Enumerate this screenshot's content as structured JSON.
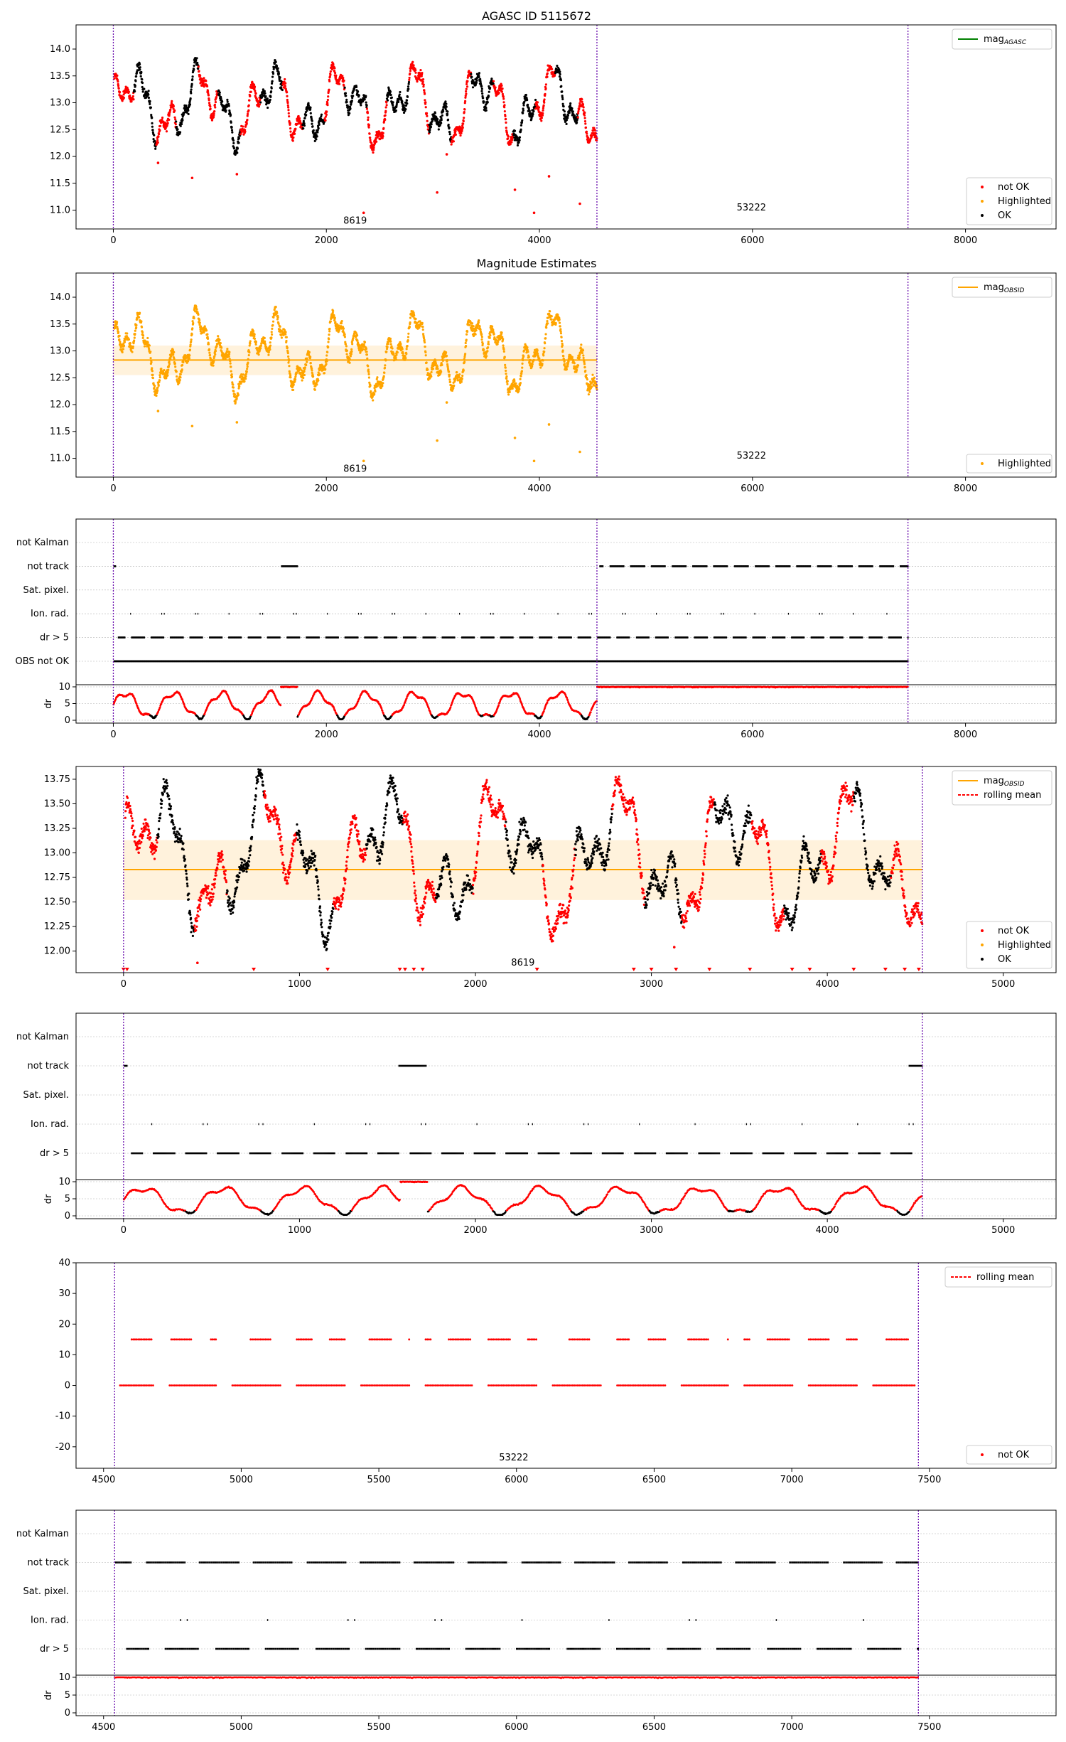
{
  "figure": {
    "title": "AGASC ID 5115672",
    "subtitle": "Magnitude Estimates"
  },
  "colors": {
    "ok": "#000000",
    "not_ok": "#ff0000",
    "highlighted": "#ffa500",
    "mag_agasc": "#008000",
    "mag_obsid": "#ffa500",
    "band": "#fff2dc",
    "obs_line": "#6a0dad",
    "grid": "#b0b0b0"
  },
  "flag_labels_obs": [
    "not Kalman",
    "not track",
    "Sat. pixel.",
    "Ion. rad.",
    "dr > 5",
    "OBS not OK"
  ],
  "flag_labels": [
    "not Kalman",
    "not track",
    "Sat. pixel.",
    "Ion. rad.",
    "dr > 5"
  ],
  "chart_data": [
    {
      "id": "p1",
      "type": "scatter",
      "title": "AGASC ID 5115672",
      "xlim": [
        -350,
        8850
      ],
      "ylim": [
        10.65,
        14.45
      ],
      "xticks": [
        0,
        2000,
        4000,
        6000,
        8000
      ],
      "yticks": [
        11.0,
        11.5,
        12.0,
        12.5,
        13.0,
        13.5,
        14.0
      ],
      "obs_lines": [
        0,
        4540,
        7460
      ],
      "obs_labels": [
        {
          "text": "8619",
          "x": 2270,
          "y": 10.8
        },
        {
          "text": "53222",
          "x": 5990,
          "y": 11.05
        }
      ],
      "legend_top": {
        "label": "mag",
        "sub": "AGASC"
      },
      "legend_bottom": [
        "not OK",
        "Highlighted",
        "OK"
      ]
    },
    {
      "id": "p2",
      "type": "scatter",
      "title": "Magnitude Estimates",
      "xlim": [
        -350,
        8850
      ],
      "ylim": [
        10.65,
        14.45
      ],
      "xticks": [
        0,
        2000,
        4000,
        6000,
        8000
      ],
      "yticks": [
        11.0,
        11.5,
        12.0,
        12.5,
        13.0,
        13.5,
        14.0
      ],
      "obs_lines": [
        0,
        4540,
        7460
      ],
      "obs_labels": [
        {
          "text": "8619",
          "x": 2270,
          "y": 10.8
        },
        {
          "text": "53222",
          "x": 5990,
          "y": 11.05
        }
      ],
      "mag_obsid": 12.83,
      "mag_band": [
        12.55,
        13.1
      ],
      "mag_range": [
        0,
        4540
      ],
      "legend_top": {
        "label": "mag",
        "sub": "OBSID"
      },
      "legend_bottom": [
        "Highlighted"
      ]
    },
    {
      "id": "p3",
      "type": "flags",
      "xlim": [
        -350,
        8850
      ],
      "xticks": [
        0,
        2000,
        4000,
        6000,
        8000
      ],
      "obs_lines": [
        0,
        4540,
        7460
      ],
      "dr_yticks": [
        0,
        5,
        10
      ],
      "dr_ylabel": "dr"
    },
    {
      "id": "p4",
      "type": "scatter",
      "xlim": [
        -270,
        5300
      ],
      "ylim": [
        11.78,
        13.88
      ],
      "xticks": [
        0,
        1000,
        2000,
        3000,
        4000,
        5000
      ],
      "yticks": [
        12.0,
        12.25,
        12.5,
        12.75,
        13.0,
        13.25,
        13.5,
        13.75
      ],
      "obs_lines": [
        0,
        4540
      ],
      "obs_labels": [
        {
          "text": "8619",
          "x": 2270,
          "y": 11.88
        }
      ],
      "mag_obsid": 12.83,
      "mag_band": [
        12.52,
        13.13
      ],
      "mag_range": [
        0,
        4540
      ],
      "legend_top": {
        "label": "mag",
        "sub": "OBSID",
        "second": "rolling mean"
      },
      "legend_bottom": [
        "not OK",
        "Highlighted",
        "OK"
      ]
    },
    {
      "id": "p5",
      "type": "flags",
      "xlim": [
        -270,
        5300
      ],
      "xticks": [
        0,
        1000,
        2000,
        3000,
        4000,
        5000
      ],
      "obs_lines": [
        0,
        4540
      ],
      "dr_yticks": [
        0,
        5,
        10
      ],
      "dr_ylabel": "dr"
    },
    {
      "id": "p6",
      "type": "scatter",
      "xlim": [
        4400,
        7960
      ],
      "ylim": [
        -27,
        40
      ],
      "xticks": [
        4500,
        5000,
        5500,
        6000,
        6500,
        7000,
        7500
      ],
      "yticks": [
        -20,
        -10,
        0,
        10,
        20,
        30,
        40
      ],
      "obs_lines": [
        4540,
        7460
      ],
      "obs_labels": [
        {
          "text": "53222",
          "x": 5990,
          "y": -23.5
        }
      ],
      "legend_top": {
        "second": "rolling mean"
      },
      "legend_bottom": [
        "not OK"
      ]
    },
    {
      "id": "p7",
      "type": "flags",
      "xlim": [
        4400,
        7960
      ],
      "xticks": [
        4500,
        5000,
        5500,
        6000,
        6500,
        7000,
        7500
      ],
      "obs_lines": [
        4540,
        7460
      ],
      "dr_yticks": [
        0,
        5,
        10
      ],
      "dr_ylabel": "dr"
    }
  ]
}
